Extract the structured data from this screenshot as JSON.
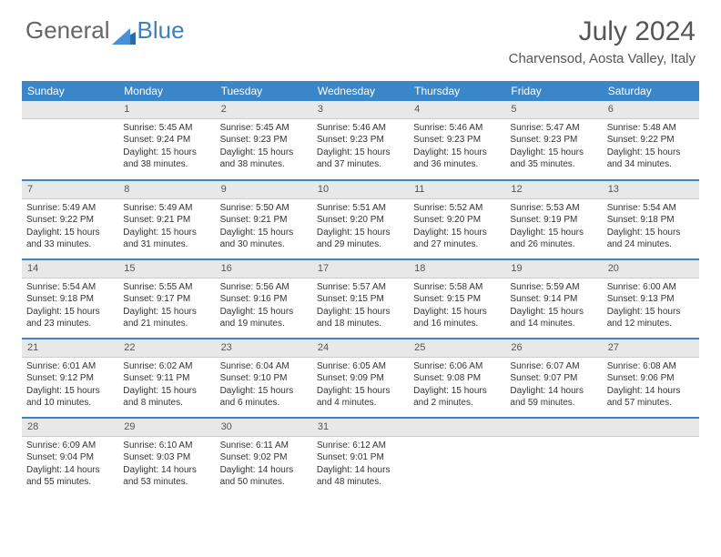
{
  "logo": {
    "part1": "General",
    "part2": "Blue"
  },
  "title": {
    "month": "July 2024",
    "location": "Charvensod, Aosta Valley, Italy"
  },
  "colors": {
    "header_bg": "#3a86c8",
    "header_fg": "#ffffff",
    "daynum_bg": "#e8e8e8",
    "text": "#333333",
    "logo_blue": "#3a7fc4"
  },
  "day_headers": [
    "Sunday",
    "Monday",
    "Tuesday",
    "Wednesday",
    "Thursday",
    "Friday",
    "Saturday"
  ],
  "weeks": [
    [
      null,
      {
        "n": "1",
        "sr": "Sunrise: 5:45 AM",
        "ss": "Sunset: 9:24 PM",
        "dl": "Daylight: 15 hours and 38 minutes."
      },
      {
        "n": "2",
        "sr": "Sunrise: 5:45 AM",
        "ss": "Sunset: 9:23 PM",
        "dl": "Daylight: 15 hours and 38 minutes."
      },
      {
        "n": "3",
        "sr": "Sunrise: 5:46 AM",
        "ss": "Sunset: 9:23 PM",
        "dl": "Daylight: 15 hours and 37 minutes."
      },
      {
        "n": "4",
        "sr": "Sunrise: 5:46 AM",
        "ss": "Sunset: 9:23 PM",
        "dl": "Daylight: 15 hours and 36 minutes."
      },
      {
        "n": "5",
        "sr": "Sunrise: 5:47 AM",
        "ss": "Sunset: 9:23 PM",
        "dl": "Daylight: 15 hours and 35 minutes."
      },
      {
        "n": "6",
        "sr": "Sunrise: 5:48 AM",
        "ss": "Sunset: 9:22 PM",
        "dl": "Daylight: 15 hours and 34 minutes."
      }
    ],
    [
      {
        "n": "7",
        "sr": "Sunrise: 5:49 AM",
        "ss": "Sunset: 9:22 PM",
        "dl": "Daylight: 15 hours and 33 minutes."
      },
      {
        "n": "8",
        "sr": "Sunrise: 5:49 AM",
        "ss": "Sunset: 9:21 PM",
        "dl": "Daylight: 15 hours and 31 minutes."
      },
      {
        "n": "9",
        "sr": "Sunrise: 5:50 AM",
        "ss": "Sunset: 9:21 PM",
        "dl": "Daylight: 15 hours and 30 minutes."
      },
      {
        "n": "10",
        "sr": "Sunrise: 5:51 AM",
        "ss": "Sunset: 9:20 PM",
        "dl": "Daylight: 15 hours and 29 minutes."
      },
      {
        "n": "11",
        "sr": "Sunrise: 5:52 AM",
        "ss": "Sunset: 9:20 PM",
        "dl": "Daylight: 15 hours and 27 minutes."
      },
      {
        "n": "12",
        "sr": "Sunrise: 5:53 AM",
        "ss": "Sunset: 9:19 PM",
        "dl": "Daylight: 15 hours and 26 minutes."
      },
      {
        "n": "13",
        "sr": "Sunrise: 5:54 AM",
        "ss": "Sunset: 9:18 PM",
        "dl": "Daylight: 15 hours and 24 minutes."
      }
    ],
    [
      {
        "n": "14",
        "sr": "Sunrise: 5:54 AM",
        "ss": "Sunset: 9:18 PM",
        "dl": "Daylight: 15 hours and 23 minutes."
      },
      {
        "n": "15",
        "sr": "Sunrise: 5:55 AM",
        "ss": "Sunset: 9:17 PM",
        "dl": "Daylight: 15 hours and 21 minutes."
      },
      {
        "n": "16",
        "sr": "Sunrise: 5:56 AM",
        "ss": "Sunset: 9:16 PM",
        "dl": "Daylight: 15 hours and 19 minutes."
      },
      {
        "n": "17",
        "sr": "Sunrise: 5:57 AM",
        "ss": "Sunset: 9:15 PM",
        "dl": "Daylight: 15 hours and 18 minutes."
      },
      {
        "n": "18",
        "sr": "Sunrise: 5:58 AM",
        "ss": "Sunset: 9:15 PM",
        "dl": "Daylight: 15 hours and 16 minutes."
      },
      {
        "n": "19",
        "sr": "Sunrise: 5:59 AM",
        "ss": "Sunset: 9:14 PM",
        "dl": "Daylight: 15 hours and 14 minutes."
      },
      {
        "n": "20",
        "sr": "Sunrise: 6:00 AM",
        "ss": "Sunset: 9:13 PM",
        "dl": "Daylight: 15 hours and 12 minutes."
      }
    ],
    [
      {
        "n": "21",
        "sr": "Sunrise: 6:01 AM",
        "ss": "Sunset: 9:12 PM",
        "dl": "Daylight: 15 hours and 10 minutes."
      },
      {
        "n": "22",
        "sr": "Sunrise: 6:02 AM",
        "ss": "Sunset: 9:11 PM",
        "dl": "Daylight: 15 hours and 8 minutes."
      },
      {
        "n": "23",
        "sr": "Sunrise: 6:04 AM",
        "ss": "Sunset: 9:10 PM",
        "dl": "Daylight: 15 hours and 6 minutes."
      },
      {
        "n": "24",
        "sr": "Sunrise: 6:05 AM",
        "ss": "Sunset: 9:09 PM",
        "dl": "Daylight: 15 hours and 4 minutes."
      },
      {
        "n": "25",
        "sr": "Sunrise: 6:06 AM",
        "ss": "Sunset: 9:08 PM",
        "dl": "Daylight: 15 hours and 2 minutes."
      },
      {
        "n": "26",
        "sr": "Sunrise: 6:07 AM",
        "ss": "Sunset: 9:07 PM",
        "dl": "Daylight: 14 hours and 59 minutes."
      },
      {
        "n": "27",
        "sr": "Sunrise: 6:08 AM",
        "ss": "Sunset: 9:06 PM",
        "dl": "Daylight: 14 hours and 57 minutes."
      }
    ],
    [
      {
        "n": "28",
        "sr": "Sunrise: 6:09 AM",
        "ss": "Sunset: 9:04 PM",
        "dl": "Daylight: 14 hours and 55 minutes."
      },
      {
        "n": "29",
        "sr": "Sunrise: 6:10 AM",
        "ss": "Sunset: 9:03 PM",
        "dl": "Daylight: 14 hours and 53 minutes."
      },
      {
        "n": "30",
        "sr": "Sunrise: 6:11 AM",
        "ss": "Sunset: 9:02 PM",
        "dl": "Daylight: 14 hours and 50 minutes."
      },
      {
        "n": "31",
        "sr": "Sunrise: 6:12 AM",
        "ss": "Sunset: 9:01 PM",
        "dl": "Daylight: 14 hours and 48 minutes."
      },
      null,
      null,
      null
    ]
  ]
}
